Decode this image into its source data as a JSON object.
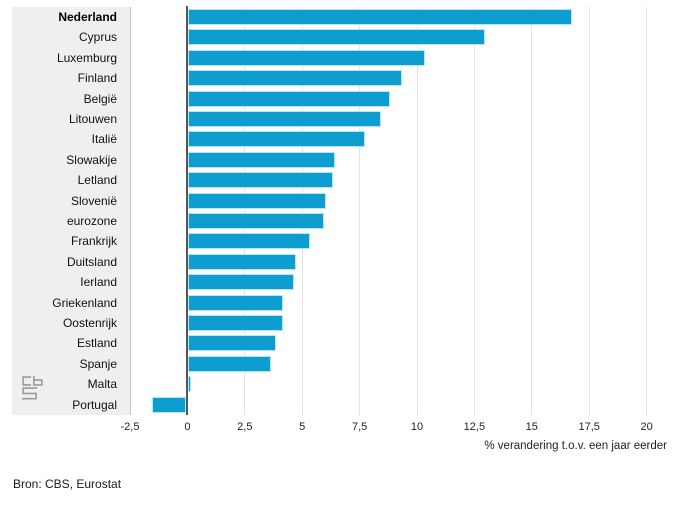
{
  "chart_data": {
    "type": "bar",
    "orientation": "horizontal",
    "categories": [
      "Nederland",
      "Cyprus",
      "Luxemburg",
      "Finland",
      "België",
      "Litouwen",
      "Italië",
      "Slowakije",
      "Letland",
      "Slovenië",
      "eurozone",
      "Frankrijk",
      "Duitsland",
      "Ierland",
      "Griekenland",
      "Oostenrijk",
      "Estland",
      "Spanje",
      "Malta",
      "Portugal"
    ],
    "values": [
      16.7,
      12.9,
      10.3,
      9.3,
      8.8,
      8.4,
      7.7,
      6.4,
      6.3,
      6.0,
      5.9,
      5.3,
      4.7,
      4.6,
      4.1,
      4.1,
      3.8,
      3.6,
      0.1,
      -1.5
    ],
    "highlight_category": "Nederland",
    "title": "",
    "xlabel": "% verandering t.o.v. een jaar eerder",
    "ylabel": "",
    "xticks": [
      "-2,5",
      "0",
      "2,5",
      "5",
      "7,5",
      "10",
      "12,5",
      "15",
      "17,5",
      "20"
    ],
    "xtick_values": [
      -2.5,
      0,
      2.5,
      5,
      7.5,
      10,
      12.5,
      15,
      17.5,
      20
    ],
    "xlim": [
      -2.5,
      20
    ],
    "grid": "vertical-only",
    "legend": "none",
    "bar_color": "#0d9ecf",
    "bar_border_color": "#b6e6f5",
    "axis_line_color": "#50585c",
    "label_panel_color": "#efefef"
  },
  "footer": {
    "source": "Bron: CBS, Eurostat"
  },
  "branding": {
    "logo": "cbs-logo"
  }
}
